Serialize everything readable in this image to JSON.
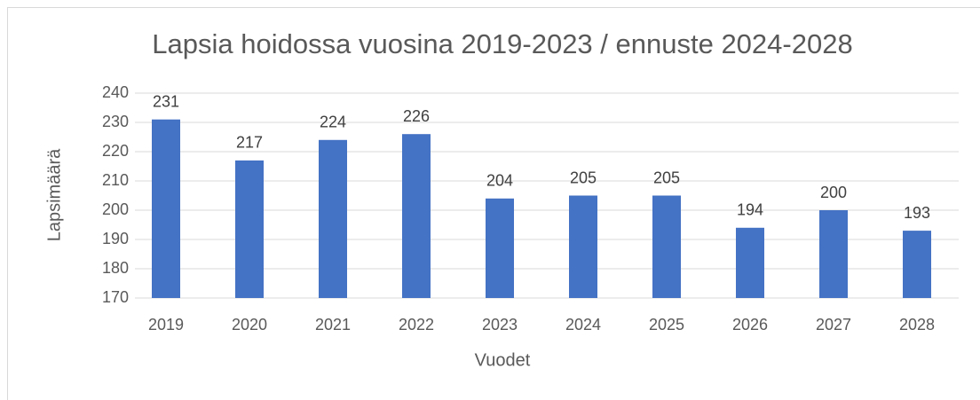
{
  "chart_data": {
    "type": "bar",
    "title": "Lapsia hoidossa vuosina 2019-2023 / ennuste 2024-2028",
    "x_label": "Vuodet",
    "y_label": "Lapsimäärä",
    "categories": [
      "2019",
      "2020",
      "2021",
      "2022",
      "2023",
      "2024",
      "2025",
      "2026",
      "2027",
      "2028"
    ],
    "values": [
      231,
      217,
      224,
      226,
      204,
      205,
      205,
      194,
      200,
      193
    ],
    "color": "#4472c4",
    "ylim": [
      170,
      240
    ],
    "yticks": [
      170,
      180,
      190,
      200,
      210,
      220,
      230,
      240
    ],
    "grid": true
  }
}
